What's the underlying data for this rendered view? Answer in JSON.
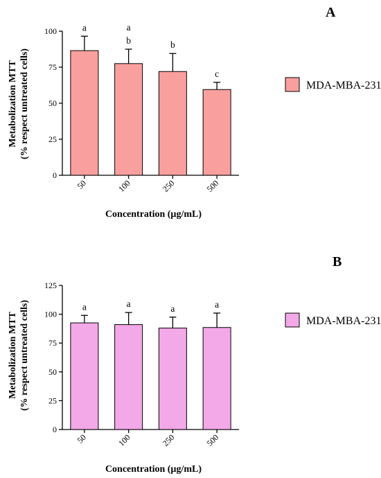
{
  "chart_data": [
    {
      "type": "bar",
      "panel_label": "A",
      "categories": [
        "50",
        "100",
        "250",
        "500"
      ],
      "values": [
        86.5,
        77.5,
        72,
        59.5
      ],
      "errors": [
        10,
        10,
        12.5,
        5
      ],
      "significance": [
        [
          "a"
        ],
        [
          "a",
          "b"
        ],
        [
          "b"
        ],
        [
          "c"
        ]
      ],
      "xlabel": "Concentration (µg/mL)",
      "ylabel": [
        "Metabolization MTT",
        "(% respect untreated cells)"
      ],
      "ylim": [
        0,
        100
      ],
      "yticks": [
        "0",
        "25",
        "50",
        "75",
        "100"
      ],
      "grid": false,
      "legend_position": "right",
      "series": [
        {
          "name": "MDA-MBA-231",
          "color": "#f9a09e"
        }
      ]
    },
    {
      "type": "bar",
      "panel_label": "B",
      "categories": [
        "50",
        "100",
        "250",
        "500"
      ],
      "values": [
        92.5,
        91,
        88,
        88.5
      ],
      "errors": [
        6.5,
        10.5,
        9.5,
        12.5
      ],
      "significance": [
        [
          "a"
        ],
        [
          "a"
        ],
        [
          "a"
        ],
        [
          "a"
        ]
      ],
      "xlabel": "Concentration (µg/mL)",
      "ylabel": [
        "Metabolization MTT",
        "(% respect untreated cells)"
      ],
      "ylim": [
        0,
        125
      ],
      "yticks": [
        "0",
        "25",
        "50",
        "75",
        "100",
        "125"
      ],
      "grid": false,
      "legend_position": "right",
      "series": [
        {
          "name": "MDA-MBA-231",
          "color": "#f3a8e8"
        }
      ]
    }
  ]
}
